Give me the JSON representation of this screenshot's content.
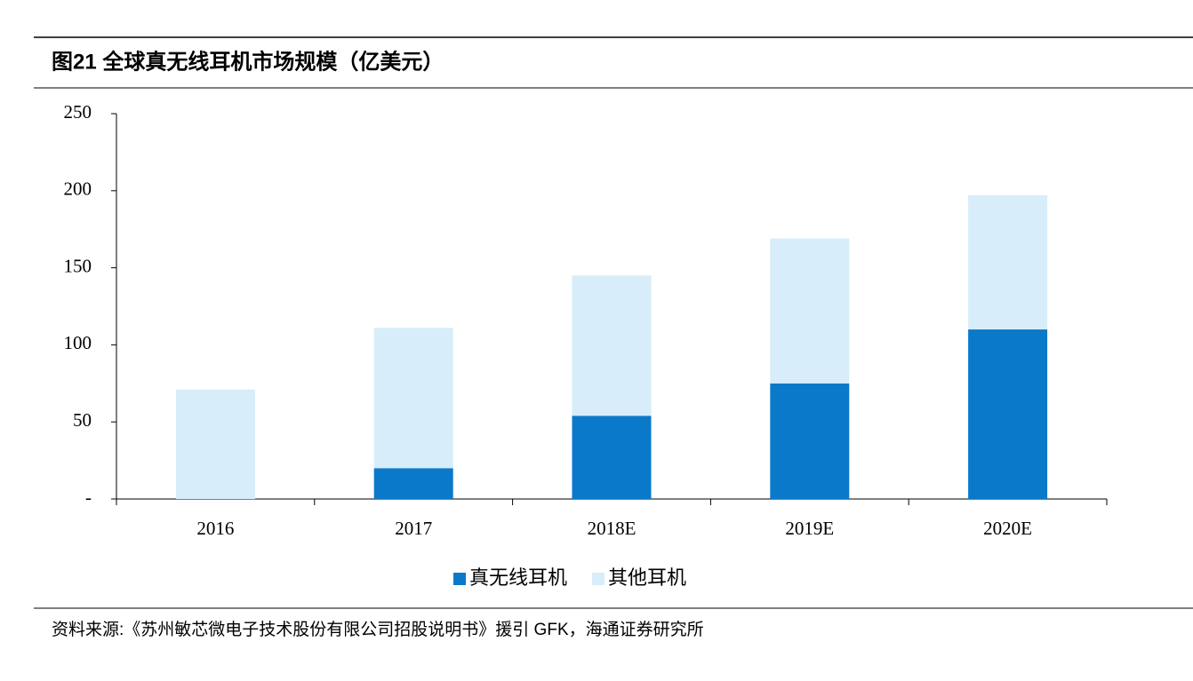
{
  "chart_data": {
    "type": "stacked-bar",
    "title": "图21 全球真无线耳机市场规模（亿美元）",
    "source": "资料来源:《苏州敏芯微电子技术股份有限公司招股说明书》援引 GFK，海通证券研究所",
    "categories": [
      "2016",
      "2017",
      "2018E",
      "2019E",
      "2020E"
    ],
    "series": [
      {
        "name": "真无线耳机",
        "color": "#0b79c9",
        "values": [
          0,
          20,
          54,
          75,
          110
        ]
      },
      {
        "name": "其他耳机",
        "color": "#d7edfa",
        "values": [
          71,
          91,
          91,
          94,
          87
        ]
      }
    ],
    "ylim": [
      0,
      250
    ],
    "yticks": [
      {
        "value": 0,
        "label": "-"
      },
      50,
      100,
      150,
      200,
      250
    ],
    "legend": "bottom"
  }
}
